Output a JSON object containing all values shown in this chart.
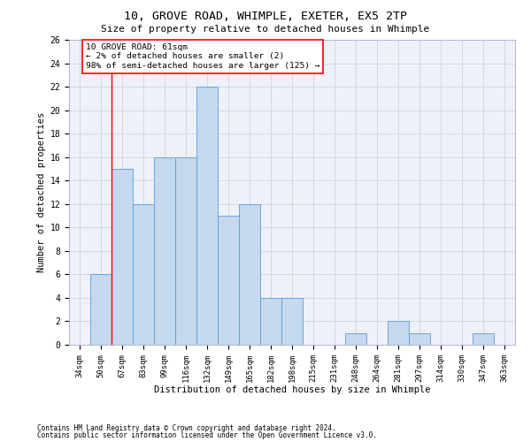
{
  "title_line1": "10, GROVE ROAD, WHIMPLE, EXETER, EX5 2TP",
  "title_line2": "Size of property relative to detached houses in Whimple",
  "xlabel": "Distribution of detached houses by size in Whimple",
  "ylabel": "Number of detached properties",
  "categories": [
    "34sqm",
    "50sqm",
    "67sqm",
    "83sqm",
    "99sqm",
    "116sqm",
    "132sqm",
    "149sqm",
    "165sqm",
    "182sqm",
    "198sqm",
    "215sqm",
    "231sqm",
    "248sqm",
    "264sqm",
    "281sqm",
    "297sqm",
    "314sqm",
    "330sqm",
    "347sqm",
    "363sqm"
  ],
  "values": [
    0,
    6,
    15,
    12,
    16,
    16,
    22,
    11,
    12,
    4,
    4,
    0,
    0,
    1,
    0,
    2,
    1,
    0,
    0,
    1,
    0
  ],
  "bar_color": "#c5d8f0",
  "bar_edge_color": "#5b9bd5",
  "annotation_box_text": "10 GROVE ROAD: 61sqm\n← 2% of detached houses are smaller (2)\n98% of semi-detached houses are larger (125) →",
  "ylim": [
    0,
    26
  ],
  "yticks": [
    0,
    2,
    4,
    6,
    8,
    10,
    12,
    14,
    16,
    18,
    20,
    22,
    24,
    26
  ],
  "grid_color": "#c8d4e8",
  "background_color": "#eef2f8",
  "footnote1": "Contains HM Land Registry data © Crown copyright and database right 2024.",
  "footnote2": "Contains public sector information licensed under the Open Government Licence v3.0."
}
